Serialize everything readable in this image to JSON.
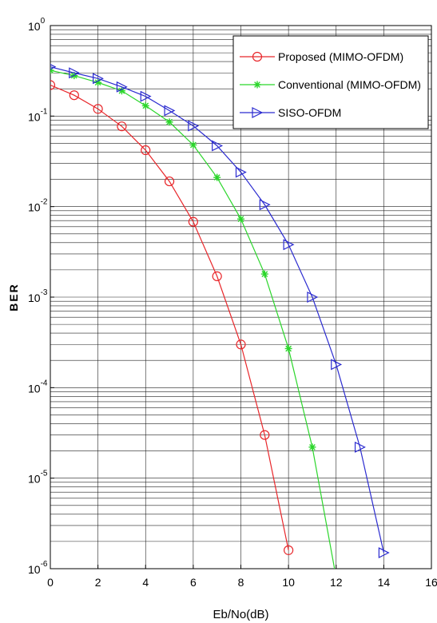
{
  "chart_data": {
    "type": "line",
    "xlabel": "Eb/No(dB)",
    "ylabel": "BER",
    "xlim": [
      0,
      16
    ],
    "ylim": [
      1e-06,
      1
    ],
    "yscale": "log",
    "grid": true,
    "legend_position": "top-right",
    "x_ticks": [
      {
        "value": 0,
        "label": "0"
      },
      {
        "value": 2,
        "label": "2"
      },
      {
        "value": 4,
        "label": "4"
      },
      {
        "value": 6,
        "label": "6"
      },
      {
        "value": 8,
        "label": "8"
      },
      {
        "value": 10,
        "label": "10"
      },
      {
        "value": 12,
        "label": "12"
      },
      {
        "value": 14,
        "label": "14"
      },
      {
        "value": 16,
        "label": "16"
      }
    ],
    "y_ticks": [
      {
        "exp": 0,
        "base": "10",
        "sup": "0"
      },
      {
        "exp": -1,
        "base": "10",
        "sup": "-1"
      },
      {
        "exp": -2,
        "base": "10",
        "sup": "-2"
      },
      {
        "exp": -3,
        "base": "10",
        "sup": "-3"
      },
      {
        "exp": -4,
        "base": "10",
        "sup": "-4"
      },
      {
        "exp": -5,
        "base": "10",
        "sup": "-5"
      },
      {
        "exp": -6,
        "base": "10",
        "sup": "-6"
      }
    ],
    "series": [
      {
        "name": "Proposed (MIMO-OFDM)",
        "color": "#e8262a",
        "marker": "circle",
        "x": [
          0,
          1,
          2,
          3,
          4,
          5,
          6,
          7,
          8,
          9,
          10
        ],
        "y": [
          0.22,
          0.17,
          0.12,
          0.077,
          0.042,
          0.019,
          0.0068,
          0.0017,
          0.0003,
          3e-05,
          1.6e-06
        ]
      },
      {
        "name": "Conventional (MIMO-OFDM)",
        "color": "#2bd62b",
        "marker": "asterisk",
        "x": [
          0,
          1,
          2,
          3,
          4,
          5,
          6,
          7,
          8,
          9,
          10,
          11,
          12
        ],
        "y": [
          0.32,
          0.28,
          0.235,
          0.19,
          0.13,
          0.086,
          0.048,
          0.021,
          0.0073,
          0.0018,
          0.00027,
          2.2e-05,
          8e-07
        ]
      },
      {
        "name": "SISO-OFDM",
        "color": "#2b2bd0",
        "marker": "triangle-right",
        "x": [
          0,
          1,
          2,
          3,
          4,
          5,
          6,
          7,
          8,
          9,
          10,
          11,
          12,
          13,
          14
        ],
        "y": [
          0.35,
          0.3,
          0.26,
          0.21,
          0.165,
          0.115,
          0.078,
          0.047,
          0.024,
          0.0105,
          0.0038,
          0.001,
          0.00018,
          2.2e-05,
          1.5e-06
        ]
      }
    ]
  }
}
